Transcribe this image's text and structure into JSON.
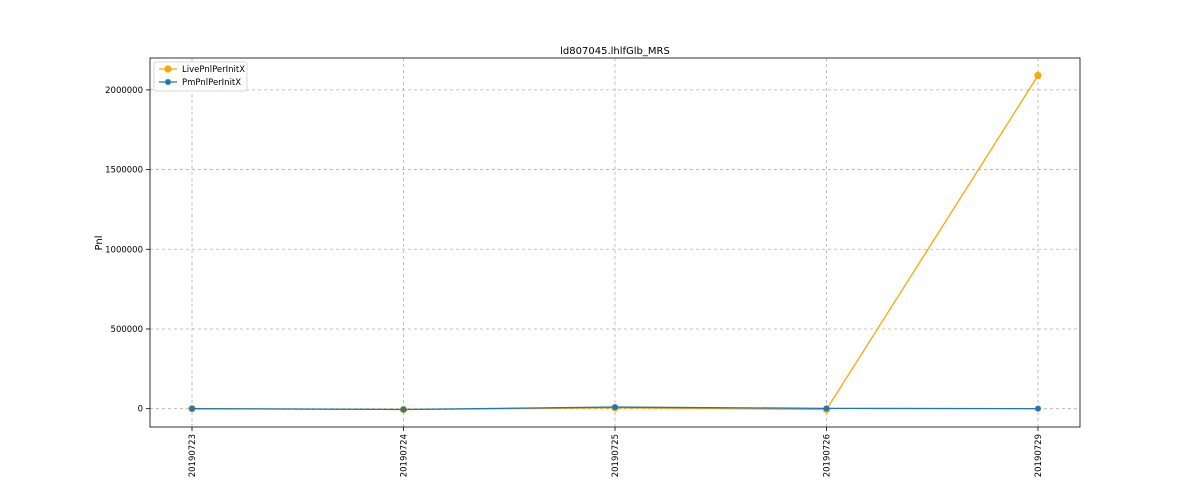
{
  "chart_data": {
    "type": "line",
    "title": "ld807045.lhlfGlb_MRS",
    "xlabel": "",
    "ylabel": "Pnl",
    "categories": [
      "20190723",
      "20190724",
      "20190725",
      "20190726",
      "20190729"
    ],
    "ylim": [
      -115000,
      2200000
    ],
    "yticks": [
      0,
      500000,
      1000000,
      1500000,
      2000000
    ],
    "ytick_labels": [
      "0",
      "500000",
      "1000000",
      "1500000",
      "2000000"
    ],
    "grid": true,
    "legend_position": "top-left",
    "series": [
      {
        "name": "LivePnlPerInitX",
        "color": "#ffa500",
        "values": [
          0,
          -5000,
          5000,
          -5000,
          2090000
        ]
      },
      {
        "name": "PmPnlPerInitX",
        "color": "#1f77b4",
        "values": [
          0,
          -5000,
          10000,
          2000,
          0
        ]
      }
    ]
  }
}
